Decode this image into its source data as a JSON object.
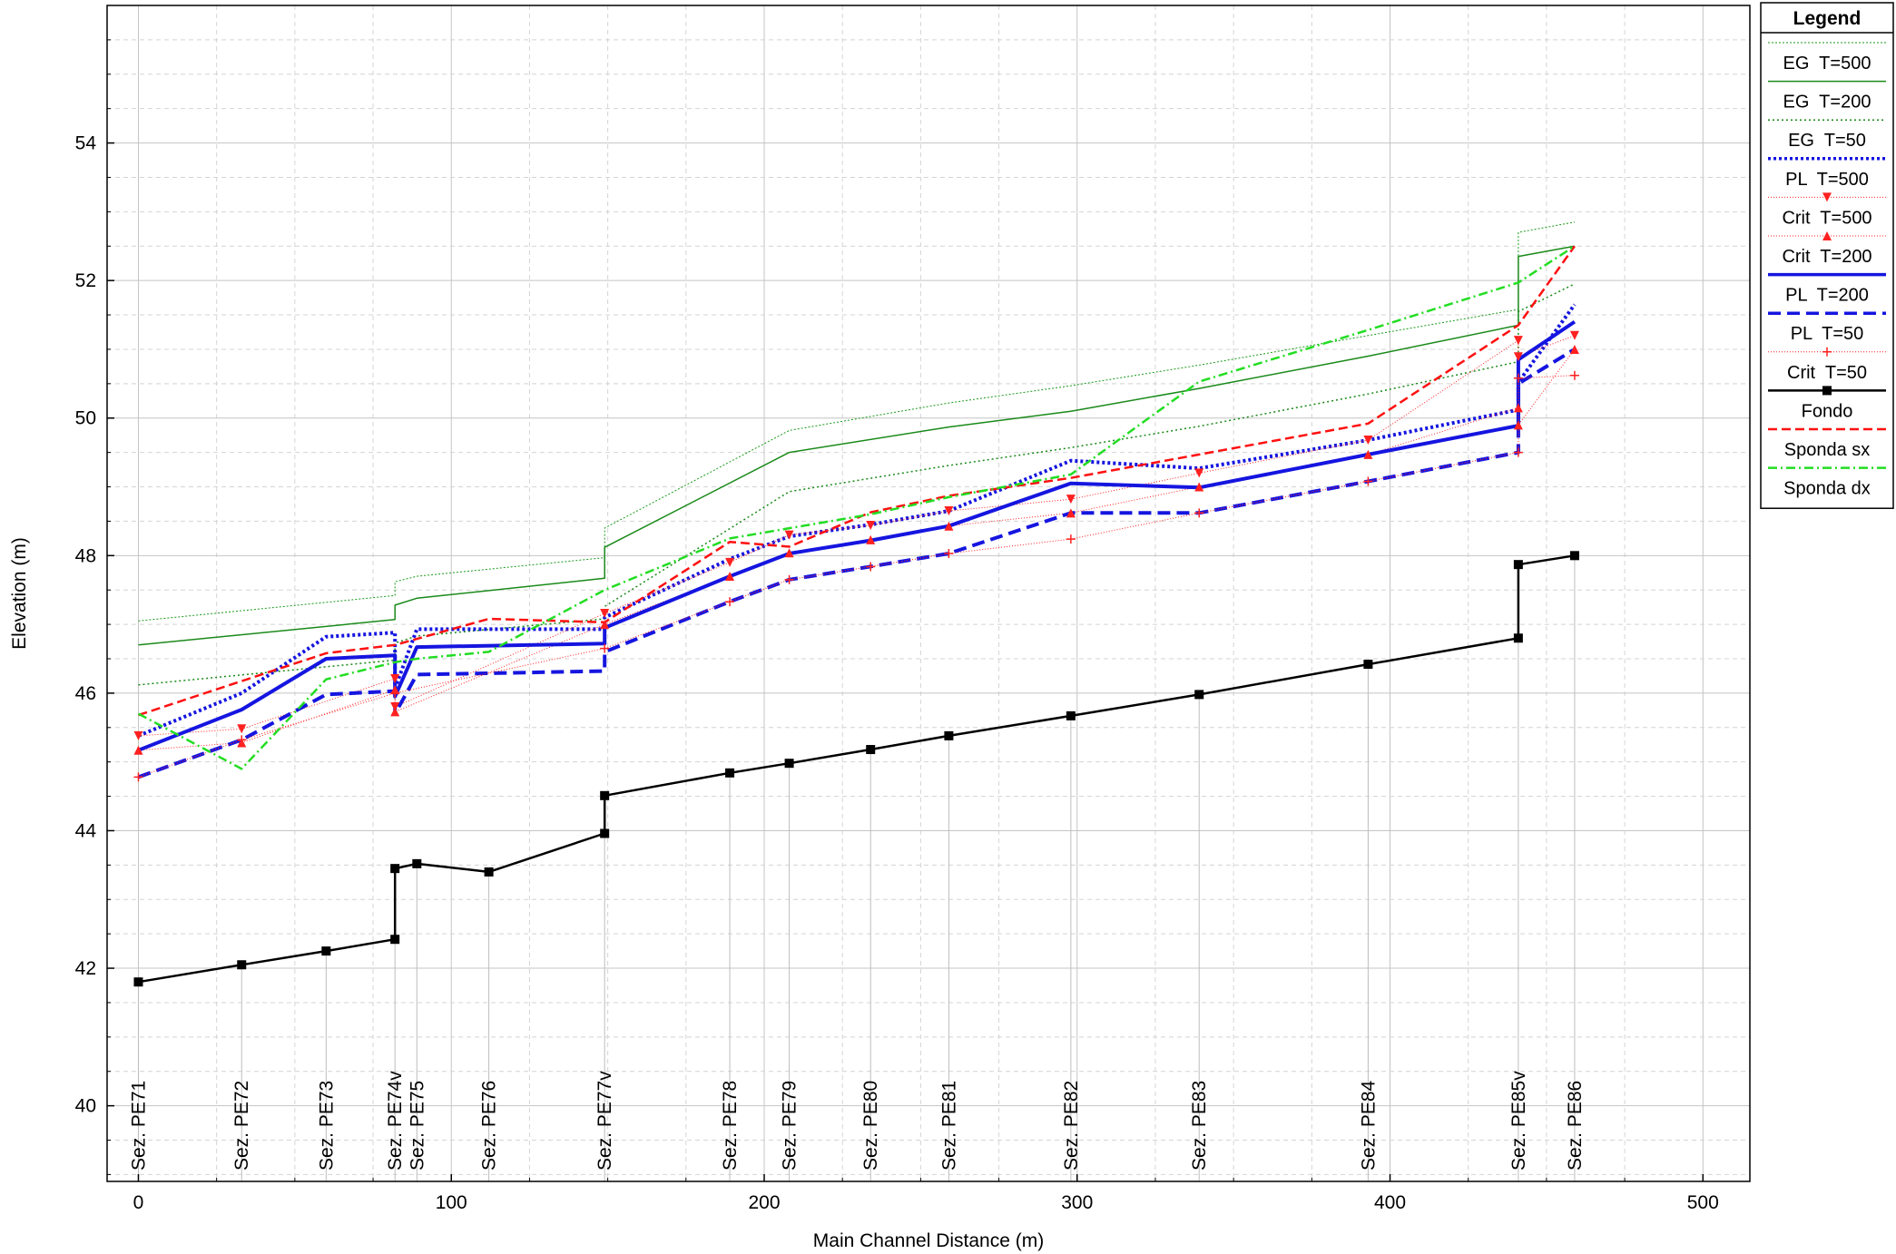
{
  "chart_data": {
    "type": "line",
    "xlabel": "Main Channel Distance (m)",
    "ylabel": "Elevation (m)",
    "xlim": [
      -10,
      515
    ],
    "ylim": [
      38.9,
      56.0
    ],
    "x_ticks": [
      0,
      100,
      200,
      300,
      400,
      500
    ],
    "y_ticks": [
      40,
      42,
      44,
      46,
      48,
      50,
      52,
      54
    ],
    "grid": true,
    "legend_title": "Legend",
    "legend_position": "right",
    "sections": [
      {
        "label": "Sez. PE71",
        "x": 0
      },
      {
        "label": "Sez. PE72",
        "x": 33
      },
      {
        "label": "Sez. PE73",
        "x": 60
      },
      {
        "label": "Sez. PE74v",
        "x": 82
      },
      {
        "label": "Sez. PE75",
        "x": 89
      },
      {
        "label": "Sez. PE76",
        "x": 112
      },
      {
        "label": "Sez. PE77v",
        "x": 149
      },
      {
        "label": "Sez. PE78",
        "x": 189
      },
      {
        "label": "Sez. PE79",
        "x": 208
      },
      {
        "label": "Sez. PE80",
        "x": 234
      },
      {
        "label": "Sez. PE81",
        "x": 259
      },
      {
        "label": "Sez. PE82",
        "x": 298
      },
      {
        "label": "Sez. PE83",
        "x": 339
      },
      {
        "label": "Sez. PE84",
        "x": 393
      },
      {
        "label": "Sez. PE85v",
        "x": 441
      },
      {
        "label": "Sez. PE86",
        "x": 459
      }
    ],
    "series": [
      {
        "name": "EG  T=500",
        "color": "#1a9a1a",
        "dash": "2,2",
        "width": 1,
        "marker": "none",
        "points": [
          [
            0,
            47.05
          ],
          [
            82,
            47.42
          ],
          [
            82,
            47.62
          ],
          [
            89,
            47.7
          ],
          [
            149,
            47.97
          ],
          [
            149,
            48.4
          ],
          [
            208,
            49.82
          ],
          [
            259,
            50.22
          ],
          [
            298,
            50.47
          ],
          [
            339,
            50.77
          ],
          [
            393,
            51.2
          ],
          [
            441,
            51.58
          ],
          [
            441,
            52.7
          ],
          [
            459,
            52.85
          ]
        ]
      },
      {
        "name": "EG  T=200",
        "color": "#1a8a1a",
        "dash": "",
        "width": 1.5,
        "marker": "none",
        "points": [
          [
            0,
            46.7
          ],
          [
            82,
            47.07
          ],
          [
            82,
            47.28
          ],
          [
            89,
            47.38
          ],
          [
            149,
            47.67
          ],
          [
            149,
            48.12
          ],
          [
            208,
            49.5
          ],
          [
            259,
            49.87
          ],
          [
            298,
            50.1
          ],
          [
            339,
            50.43
          ],
          [
            393,
            50.9
          ],
          [
            441,
            51.35
          ],
          [
            441,
            52.35
          ],
          [
            459,
            52.5
          ]
        ]
      },
      {
        "name": "EG  T=50",
        "color": "#1a8a1a",
        "dash": "2,3",
        "width": 1.5,
        "marker": "none",
        "points": [
          [
            0,
            46.12
          ],
          [
            82,
            46.48
          ],
          [
            82,
            46.73
          ],
          [
            89,
            46.83
          ],
          [
            149,
            47.08
          ],
          [
            149,
            47.26
          ],
          [
            208,
            48.93
          ],
          [
            259,
            49.31
          ],
          [
            298,
            49.57
          ],
          [
            339,
            49.88
          ],
          [
            393,
            50.35
          ],
          [
            441,
            50.82
          ],
          [
            441,
            51.55
          ],
          [
            459,
            51.95
          ]
        ]
      },
      {
        "name": "PL  T=500",
        "color": "#1515e0",
        "dash": "3,3",
        "width": 4,
        "marker": "none",
        "points": [
          [
            0,
            45.38
          ],
          [
            33,
            46.0
          ],
          [
            60,
            46.82
          ],
          [
            82,
            46.88
          ],
          [
            82,
            46.07
          ],
          [
            89,
            46.93
          ],
          [
            149,
            46.93
          ],
          [
            149,
            47.1
          ],
          [
            189,
            47.95
          ],
          [
            208,
            48.28
          ],
          [
            234,
            48.45
          ],
          [
            259,
            48.65
          ],
          [
            298,
            49.38
          ],
          [
            339,
            49.27
          ],
          [
            393,
            49.68
          ],
          [
            441,
            50.12
          ],
          [
            441,
            50.52
          ],
          [
            459,
            51.65
          ]
        ]
      },
      {
        "name": "Crit  T=500",
        "color": "#ff2020",
        "dash": "1,2",
        "width": 1,
        "marker": "tri-down",
        "points": [
          [
            0,
            45.38
          ],
          [
            33,
            45.48
          ],
          [
            82,
            46.21
          ],
          [
            82,
            45.8
          ],
          [
            149,
            47.16
          ],
          [
            189,
            47.9
          ],
          [
            208,
            48.3
          ],
          [
            234,
            48.44
          ],
          [
            259,
            48.65
          ],
          [
            298,
            48.82
          ],
          [
            339,
            49.2
          ],
          [
            393,
            49.68
          ],
          [
            441,
            51.13
          ],
          [
            441,
            50.89
          ],
          [
            459,
            51.2
          ]
        ]
      },
      {
        "name": "Crit  T=200",
        "color": "#ff2020",
        "dash": "1,2",
        "width": 1,
        "marker": "tri-up",
        "points": [
          [
            0,
            45.17
          ],
          [
            33,
            45.28
          ],
          [
            82,
            46.05
          ],
          [
            82,
            45.73
          ],
          [
            149,
            47.0
          ],
          [
            189,
            47.7
          ],
          [
            208,
            48.04
          ],
          [
            234,
            48.23
          ],
          [
            259,
            48.43
          ],
          [
            298,
            48.62
          ],
          [
            339,
            49.0
          ],
          [
            393,
            49.47
          ],
          [
            441,
            50.15
          ],
          [
            441,
            49.9
          ],
          [
            459,
            51.0
          ]
        ]
      },
      {
        "name": "PL  T=200",
        "color": "#1515e0",
        "dash": "",
        "width": 4,
        "marker": "none",
        "points": [
          [
            0,
            45.17
          ],
          [
            33,
            45.76
          ],
          [
            60,
            46.5
          ],
          [
            82,
            46.55
          ],
          [
            82,
            45.95
          ],
          [
            89,
            46.67
          ],
          [
            149,
            46.72
          ],
          [
            149,
            46.95
          ],
          [
            189,
            47.7
          ],
          [
            208,
            48.03
          ],
          [
            234,
            48.22
          ],
          [
            259,
            48.43
          ],
          [
            298,
            49.05
          ],
          [
            339,
            48.99
          ],
          [
            393,
            49.47
          ],
          [
            441,
            49.89
          ],
          [
            441,
            50.85
          ],
          [
            459,
            51.4
          ]
        ]
      },
      {
        "name": "PL  T=50",
        "color": "#1515e0",
        "dash": "14,7",
        "width": 4,
        "marker": "none",
        "points": [
          [
            0,
            44.78
          ],
          [
            33,
            45.32
          ],
          [
            60,
            45.98
          ],
          [
            82,
            46.03
          ],
          [
            82,
            45.7
          ],
          [
            89,
            46.27
          ],
          [
            149,
            46.32
          ],
          [
            149,
            46.6
          ],
          [
            189,
            47.33
          ],
          [
            208,
            47.65
          ],
          [
            234,
            47.84
          ],
          [
            259,
            48.03
          ],
          [
            298,
            48.62
          ],
          [
            339,
            48.62
          ],
          [
            393,
            49.08
          ],
          [
            441,
            49.5
          ],
          [
            441,
            50.5
          ],
          [
            459,
            51.0
          ]
        ]
      },
      {
        "name": "Crit  T=50",
        "color": "#ff2020",
        "dash": "1,2",
        "width": 1,
        "marker": "plus",
        "points": [
          [
            0,
            44.78
          ],
          [
            33,
            45.32
          ],
          [
            82,
            46.0
          ],
          [
            149,
            46.65
          ],
          [
            189,
            47.33
          ],
          [
            208,
            47.65
          ],
          [
            234,
            47.84
          ],
          [
            259,
            48.03
          ],
          [
            298,
            48.24
          ],
          [
            339,
            48.62
          ],
          [
            393,
            49.08
          ],
          [
            441,
            49.5
          ],
          [
            441,
            50.58
          ],
          [
            459,
            50.62
          ]
        ]
      },
      {
        "name": "Fondo",
        "color": "#000000",
        "dash": "",
        "width": 2.5,
        "marker": "square",
        "points": [
          [
            0,
            41.8
          ],
          [
            33,
            42.05
          ],
          [
            60,
            42.25
          ],
          [
            82,
            42.42
          ],
          [
            82,
            43.45
          ],
          [
            89,
            43.52
          ],
          [
            112,
            43.4
          ],
          [
            149,
            43.96
          ],
          [
            149,
            44.51
          ],
          [
            189,
            44.84
          ],
          [
            208,
            44.98
          ],
          [
            234,
            45.18
          ],
          [
            259,
            45.38
          ],
          [
            298,
            45.67
          ],
          [
            339,
            45.98
          ],
          [
            393,
            46.42
          ],
          [
            441,
            46.8
          ],
          [
            441,
            47.87
          ],
          [
            459,
            48.0
          ]
        ]
      },
      {
        "name": "Sponda sx",
        "color": "#ff1010",
        "dash": "10,5",
        "width": 2.5,
        "marker": "none",
        "points": [
          [
            0,
            45.68
          ],
          [
            60,
            46.58
          ],
          [
            82,
            46.7
          ],
          [
            112,
            47.08
          ],
          [
            149,
            47.03
          ],
          [
            189,
            48.2
          ],
          [
            208,
            48.13
          ],
          [
            234,
            48.63
          ],
          [
            259,
            48.87
          ],
          [
            298,
            49.13
          ],
          [
            339,
            49.47
          ],
          [
            393,
            49.92
          ],
          [
            441,
            51.35
          ],
          [
            459,
            52.5
          ]
        ]
      },
      {
        "name": "Sponda dx",
        "color": "#22dd22",
        "dash": "10,4,2,4",
        "width": 2.5,
        "marker": "none",
        "points": [
          [
            0,
            45.7
          ],
          [
            33,
            44.9
          ],
          [
            60,
            46.2
          ],
          [
            82,
            46.45
          ],
          [
            89,
            46.5
          ],
          [
            112,
            46.6
          ],
          [
            149,
            47.5
          ],
          [
            189,
            48.25
          ],
          [
            234,
            48.6
          ],
          [
            259,
            48.85
          ],
          [
            298,
            49.18
          ],
          [
            339,
            50.53
          ],
          [
            393,
            51.28
          ],
          [
            441,
            51.97
          ],
          [
            459,
            52.5
          ]
        ]
      }
    ]
  }
}
